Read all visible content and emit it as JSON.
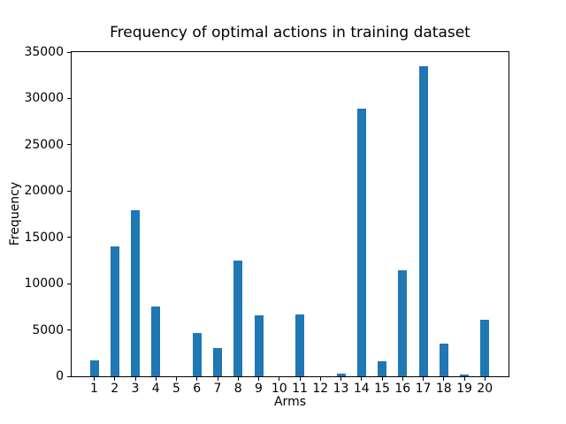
{
  "chart_data": {
    "type": "bar",
    "title": "Frequency of optimal actions in training dataset",
    "xlabel": "Arms",
    "ylabel": "Frequency",
    "categories": [
      "1",
      "2",
      "3",
      "4",
      "5",
      "6",
      "7",
      "8",
      "9",
      "10",
      "11",
      "12",
      "13",
      "14",
      "15",
      "16",
      "17",
      "18",
      "19",
      "20"
    ],
    "values": [
      1700,
      14000,
      17950,
      7550,
      0,
      4700,
      3050,
      12450,
      6600,
      0,
      6700,
      0,
      300,
      28900,
      1650,
      11450,
      33500,
      3500,
      200,
      6100
    ],
    "ylim": [
      0,
      35000
    ],
    "yticks": [
      0,
      5000,
      10000,
      15000,
      20000,
      25000,
      30000,
      35000
    ],
    "grid": false,
    "legend_position": "none",
    "bar_color": "#1f77b4",
    "axis_color": "#000000",
    "background_color": "#ffffff"
  }
}
